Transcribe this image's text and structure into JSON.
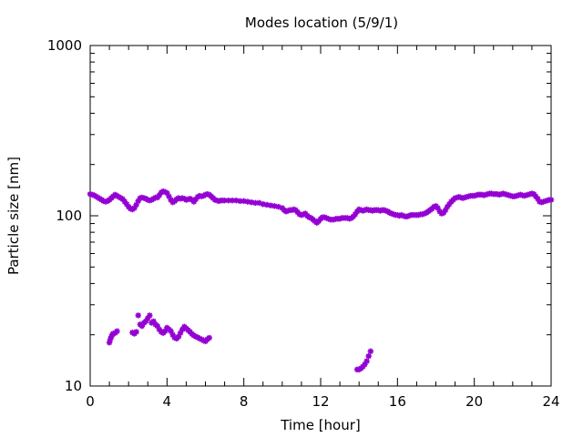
{
  "chart_data": {
    "type": "scatter",
    "title": "Modes location (5/9/1)",
    "xlabel": "Time [hour]",
    "ylabel": "Particle size [nm]",
    "xlim": [
      0,
      24
    ],
    "ylim": [
      10,
      1000
    ],
    "yscale": "log",
    "xticks": [
      0,
      4,
      8,
      12,
      16,
      20,
      24
    ],
    "yticks": [
      10,
      100,
      1000
    ],
    "grid": false,
    "marker_color": "#9400D3",
    "series": [
      {
        "points": [
          [
            0.0,
            134
          ],
          [
            0.1,
            133
          ],
          [
            0.2,
            132
          ],
          [
            0.3,
            130
          ],
          [
            0.4,
            128
          ],
          [
            0.5,
            126
          ],
          [
            0.6,
            124
          ],
          [
            0.7,
            122
          ],
          [
            0.8,
            121
          ],
          [
            0.9,
            122
          ],
          [
            1.0,
            124
          ],
          [
            1.1,
            127
          ],
          [
            1.2,
            130
          ],
          [
            1.3,
            133
          ],
          [
            1.4,
            131
          ],
          [
            1.5,
            129
          ],
          [
            1.6,
            127
          ],
          [
            1.7,
            125
          ],
          [
            1.8,
            121
          ],
          [
            1.9,
            117
          ],
          [
            2.0,
            113
          ],
          [
            2.1,
            110
          ],
          [
            2.2,
            109
          ],
          [
            2.3,
            111
          ],
          [
            2.4,
            116
          ],
          [
            2.5,
            122
          ],
          [
            2.6,
            127
          ],
          [
            2.7,
            128
          ],
          [
            2.8,
            127
          ],
          [
            2.9,
            126
          ],
          [
            3.0,
            124
          ],
          [
            3.1,
            123
          ],
          [
            3.2,
            124
          ],
          [
            3.3,
            126
          ],
          [
            3.4,
            128
          ],
          [
            3.5,
            128
          ],
          [
            3.6,
            132
          ],
          [
            3.7,
            137
          ],
          [
            3.8,
            139
          ],
          [
            3.9,
            138
          ],
          [
            4.0,
            136
          ],
          [
            4.1,
            130
          ],
          [
            4.2,
            124
          ],
          [
            4.3,
            120
          ],
          [
            4.4,
            122
          ],
          [
            4.5,
            125
          ],
          [
            4.6,
            127
          ],
          [
            4.7,
            126
          ],
          [
            4.8,
            127
          ],
          [
            4.9,
            126
          ],
          [
            5.0,
            124
          ],
          [
            5.1,
            125
          ],
          [
            5.2,
            126
          ],
          [
            5.3,
            124
          ],
          [
            5.4,
            121
          ],
          [
            5.5,
            125
          ],
          [
            5.6,
            129
          ],
          [
            5.7,
            131
          ],
          [
            5.8,
            130
          ],
          [
            5.9,
            131
          ],
          [
            6.0,
            133
          ],
          [
            6.1,
            134
          ],
          [
            6.2,
            133
          ],
          [
            6.3,
            130
          ],
          [
            6.4,
            127
          ],
          [
            6.5,
            124
          ],
          [
            6.6,
            123
          ],
          [
            6.7,
            122
          ],
          [
            6.8,
            123
          ],
          [
            6.9,
            123
          ],
          [
            7.0,
            123
          ],
          [
            7.2,
            123
          ],
          [
            7.4,
            123
          ],
          [
            7.6,
            123
          ],
          [
            7.8,
            122
          ],
          [
            8.0,
            122
          ],
          [
            8.2,
            121
          ],
          [
            8.4,
            120
          ],
          [
            8.6,
            119
          ],
          [
            8.8,
            119
          ],
          [
            9.0,
            117
          ],
          [
            9.2,
            116
          ],
          [
            9.4,
            115
          ],
          [
            9.6,
            114
          ],
          [
            9.8,
            113
          ],
          [
            10.0,
            111
          ],
          [
            10.1,
            108
          ],
          [
            10.2,
            106
          ],
          [
            10.3,
            107
          ],
          [
            10.4,
            108
          ],
          [
            10.5,
            108
          ],
          [
            10.6,
            109
          ],
          [
            10.7,
            108
          ],
          [
            10.8,
            105
          ],
          [
            10.9,
            102
          ],
          [
            11.0,
            101
          ],
          [
            11.1,
            102
          ],
          [
            11.2,
            103
          ],
          [
            11.3,
            100
          ],
          [
            11.4,
            98
          ],
          [
            11.5,
            97
          ],
          [
            11.6,
            95
          ],
          [
            11.7,
            93
          ],
          [
            11.8,
            91
          ],
          [
            11.9,
            93
          ],
          [
            12.0,
            96
          ],
          [
            12.1,
            98
          ],
          [
            12.2,
            98
          ],
          [
            12.3,
            97
          ],
          [
            12.4,
            96
          ],
          [
            12.5,
            95
          ],
          [
            12.6,
            95
          ],
          [
            12.7,
            95
          ],
          [
            12.8,
            96
          ],
          [
            12.9,
            96
          ],
          [
            13.0,
            96
          ],
          [
            13.1,
            97
          ],
          [
            13.2,
            97
          ],
          [
            13.3,
            97
          ],
          [
            13.4,
            97
          ],
          [
            13.5,
            96
          ],
          [
            13.6,
            97
          ],
          [
            13.7,
            99
          ],
          [
            13.8,
            102
          ],
          [
            13.9,
            106
          ],
          [
            14.0,
            109
          ],
          [
            14.1,
            108
          ],
          [
            14.2,
            107
          ],
          [
            14.3,
            108
          ],
          [
            14.4,
            109
          ],
          [
            14.5,
            108
          ],
          [
            14.6,
            108
          ],
          [
            14.7,
            107
          ],
          [
            14.8,
            108
          ],
          [
            14.9,
            108
          ],
          [
            15.0,
            108
          ],
          [
            15.1,
            107
          ],
          [
            15.2,
            108
          ],
          [
            15.3,
            108
          ],
          [
            15.4,
            107
          ],
          [
            15.5,
            106
          ],
          [
            15.6,
            104
          ],
          [
            15.7,
            103
          ],
          [
            15.8,
            102
          ],
          [
            15.9,
            101
          ],
          [
            16.0,
            101
          ],
          [
            16.1,
            100
          ],
          [
            16.2,
            101
          ],
          [
            16.3,
            100
          ],
          [
            16.4,
            99
          ],
          [
            16.5,
            99
          ],
          [
            16.6,
            100
          ],
          [
            16.7,
            101
          ],
          [
            16.8,
            101
          ],
          [
            16.9,
            101
          ],
          [
            17.0,
            101
          ],
          [
            17.1,
            101
          ],
          [
            17.2,
            102
          ],
          [
            17.3,
            102
          ],
          [
            17.4,
            103
          ],
          [
            17.5,
            104
          ],
          [
            17.6,
            106
          ],
          [
            17.7,
            108
          ],
          [
            17.8,
            110
          ],
          [
            17.9,
            113
          ],
          [
            18.0,
            114
          ],
          [
            18.1,
            111
          ],
          [
            18.2,
            106
          ],
          [
            18.3,
            103
          ],
          [
            18.4,
            104
          ],
          [
            18.5,
            108
          ],
          [
            18.6,
            113
          ],
          [
            18.7,
            117
          ],
          [
            18.8,
            121
          ],
          [
            18.9,
            124
          ],
          [
            19.0,
            127
          ],
          [
            19.1,
            128
          ],
          [
            19.2,
            129
          ],
          [
            19.3,
            128
          ],
          [
            19.4,
            127
          ],
          [
            19.5,
            128
          ],
          [
            19.6,
            129
          ],
          [
            19.7,
            130
          ],
          [
            19.8,
            131
          ],
          [
            19.9,
            131
          ],
          [
            20.0,
            131
          ],
          [
            20.1,
            132
          ],
          [
            20.2,
            133
          ],
          [
            20.3,
            133
          ],
          [
            20.4,
            133
          ],
          [
            20.5,
            132
          ],
          [
            20.6,
            133
          ],
          [
            20.7,
            134
          ],
          [
            20.8,
            135
          ],
          [
            20.9,
            135
          ],
          [
            21.0,
            134
          ],
          [
            21.1,
            134
          ],
          [
            21.2,
            134
          ],
          [
            21.3,
            133
          ],
          [
            21.4,
            134
          ],
          [
            21.5,
            135
          ],
          [
            21.6,
            134
          ],
          [
            21.7,
            133
          ],
          [
            21.8,
            132
          ],
          [
            21.9,
            131
          ],
          [
            22.0,
            130
          ],
          [
            22.1,
            130
          ],
          [
            22.2,
            131
          ],
          [
            22.3,
            132
          ],
          [
            22.4,
            133
          ],
          [
            22.5,
            132
          ],
          [
            22.6,
            131
          ],
          [
            22.7,
            132
          ],
          [
            22.8,
            133
          ],
          [
            22.9,
            134
          ],
          [
            23.0,
            135
          ],
          [
            23.1,
            134
          ],
          [
            23.2,
            130
          ],
          [
            23.3,
            126
          ],
          [
            23.4,
            121
          ],
          [
            23.5,
            120
          ],
          [
            23.6,
            121
          ],
          [
            23.7,
            122
          ],
          [
            23.8,
            123
          ],
          [
            23.9,
            124
          ],
          [
            24.0,
            124
          ],
          [
            1.0,
            18.0
          ],
          [
            1.05,
            18.8
          ],
          [
            1.1,
            19.5
          ],
          [
            1.15,
            20.0
          ],
          [
            1.2,
            20.3
          ],
          [
            1.3,
            20.5
          ],
          [
            1.4,
            21.0
          ],
          [
            2.2,
            20.6
          ],
          [
            2.3,
            20.3
          ],
          [
            2.4,
            20.8
          ],
          [
            2.5,
            26.0
          ],
          [
            2.6,
            23.0
          ],
          [
            2.7,
            22.5
          ],
          [
            2.8,
            23.5
          ],
          [
            2.9,
            24.0
          ],
          [
            3.0,
            25.0
          ],
          [
            3.1,
            26.0
          ],
          [
            3.2,
            23.5
          ],
          [
            3.3,
            24.0
          ],
          [
            3.4,
            23.0
          ],
          [
            3.5,
            22.5
          ],
          [
            3.6,
            21.5
          ],
          [
            3.7,
            20.8
          ],
          [
            3.8,
            20.5
          ],
          [
            3.9,
            21.0
          ],
          [
            4.0,
            22.0
          ],
          [
            4.1,
            21.5
          ],
          [
            4.2,
            21.0
          ],
          [
            4.3,
            20.0
          ],
          [
            4.4,
            19.2
          ],
          [
            4.5,
            19.0
          ],
          [
            4.6,
            19.5
          ],
          [
            4.7,
            20.5
          ],
          [
            4.8,
            21.5
          ],
          [
            4.9,
            22.3
          ],
          [
            5.0,
            21.8
          ],
          [
            5.1,
            21.3
          ],
          [
            5.2,
            20.8
          ],
          [
            5.3,
            20.2
          ],
          [
            5.4,
            19.8
          ],
          [
            5.5,
            19.5
          ],
          [
            5.6,
            19.3
          ],
          [
            5.7,
            19.0
          ],
          [
            5.8,
            18.8
          ],
          [
            5.9,
            18.5
          ],
          [
            6.0,
            18.3
          ],
          [
            6.1,
            18.8
          ],
          [
            6.2,
            19.2
          ],
          [
            13.9,
            12.5
          ],
          [
            14.0,
            12.5
          ],
          [
            14.1,
            12.7
          ],
          [
            14.2,
            13.0
          ],
          [
            14.3,
            13.4
          ],
          [
            14.4,
            14.0
          ],
          [
            14.5,
            15.0
          ],
          [
            14.6,
            16.0
          ]
        ]
      }
    ]
  }
}
